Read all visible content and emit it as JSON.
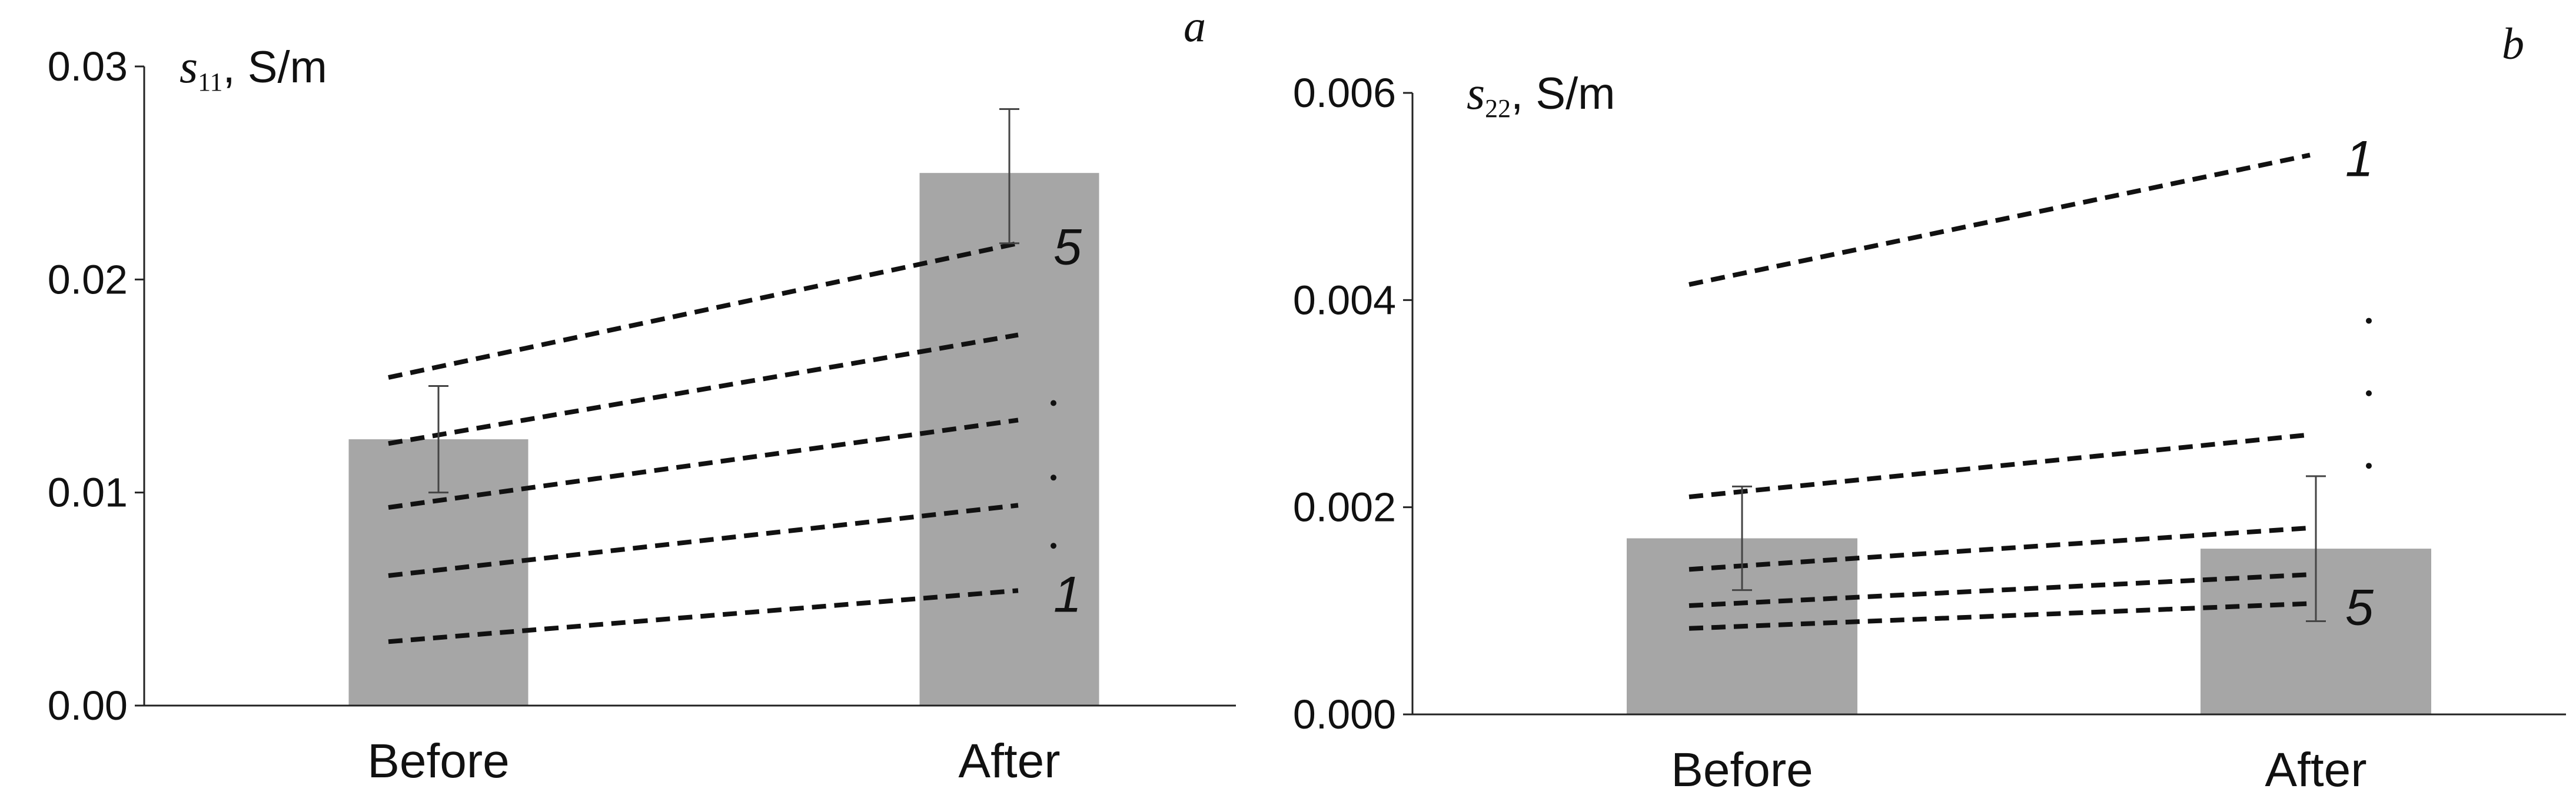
{
  "chart_data": [
    {
      "type": "bar",
      "panel_label": "a",
      "ylabel_symbol": "s",
      "ylabel_subscript": "11",
      "ylabel_unit": ", S/m",
      "categories": [
        "Before",
        "After"
      ],
      "values": [
        0.0125,
        0.025
      ],
      "errors": [
        {
          "low": 0.01,
          "high": 0.015
        },
        {
          "low": 0.0217,
          "high": 0.028
        }
      ],
      "ylim": [
        0,
        0.03
      ],
      "yticks": [
        "0.00",
        "0.01",
        "0.02",
        "0.03"
      ],
      "ytick_values": [
        0,
        0.01,
        0.02,
        0.03
      ],
      "bar_color": "#a6a6a6",
      "lines": [
        {
          "label": "5",
          "before": 0.0154,
          "after": 0.0217
        },
        {
          "label": "",
          "before": 0.0123,
          "after": 0.0174
        },
        {
          "label": "",
          "before": 0.0093,
          "after": 0.0134
        },
        {
          "label": "",
          "before": 0.0061,
          "after": 0.0094
        },
        {
          "label": "1",
          "before": 0.003,
          "after": 0.0054
        }
      ],
      "dots": [
        0.0142,
        0.0107,
        0.0075
      ]
    },
    {
      "type": "bar",
      "panel_label": "b",
      "ylabel_symbol": "s",
      "ylabel_subscript": "22",
      "ylabel_unit": ", S/m",
      "categories": [
        "Before",
        "After"
      ],
      "values": [
        0.0017,
        0.0016
      ],
      "errors": [
        {
          "low": 0.0012,
          "high": 0.0022
        },
        {
          "low": 0.0009,
          "high": 0.0023
        }
      ],
      "ylim": [
        0,
        0.006
      ],
      "yticks": [
        "0.000",
        "0.002",
        "0.004",
        "0.006"
      ],
      "ytick_values": [
        0,
        0.002,
        0.004,
        0.006
      ],
      "bar_color": "#a6a6a6",
      "lines": [
        {
          "label": "1",
          "before": 0.00415,
          "after": 0.0054
        },
        {
          "label": "",
          "before": 0.0021,
          "after": 0.0027
        },
        {
          "label": "",
          "before": 0.0014,
          "after": 0.0018
        },
        {
          "label": "",
          "before": 0.00105,
          "after": 0.00135
        },
        {
          "label": "5",
          "before": 0.00083,
          "after": 0.00107
        }
      ],
      "dots": [
        0.0038,
        0.0031,
        0.0024
      ]
    }
  ]
}
